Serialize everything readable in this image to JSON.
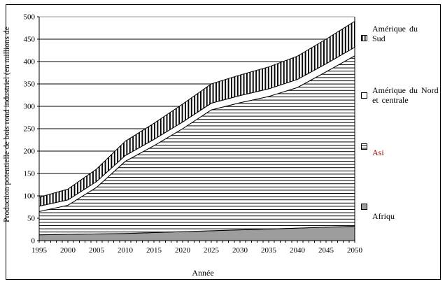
{
  "chart_data": {
    "type": "area",
    "stacked": true,
    "title": "",
    "xlabel": "Année",
    "ylabel": "Production potentielle de bois rond industriel (en millions de",
    "xlim": [
      1995,
      2050
    ],
    "ylim": [
      0,
      500
    ],
    "grid": "horizontal",
    "legend_position": "right",
    "x": [
      1995,
      2000,
      2005,
      2010,
      2015,
      2020,
      2025,
      2030,
      2035,
      2040,
      2045,
      2050
    ],
    "xticks": [
      1995,
      2000,
      2005,
      2010,
      2015,
      2020,
      2025,
      2030,
      2035,
      2040,
      2045,
      2050
    ],
    "minor_xtick_interval_years": 1,
    "yticks": [
      0,
      50,
      100,
      150,
      200,
      250,
      300,
      350,
      400,
      450,
      500
    ],
    "series": [
      {
        "key": "afrique",
        "name": "Afrique",
        "legend_label": "Afriqu",
        "swatch": "solid-gray",
        "fill_color": "#9d9d9d",
        "values": [
          13,
          14,
          15,
          16,
          18,
          20,
          22,
          24,
          26,
          28,
          30,
          32
        ]
      },
      {
        "key": "asie",
        "name": "Asie",
        "legend_label": "Asi",
        "swatch": "horizontal-stripes",
        "legend_label_color": "#990000",
        "values": [
          52,
          65,
          104,
          161,
          194,
          230,
          270,
          284,
          296,
          314,
          347,
          381
        ]
      },
      {
        "key": "amerique-du-nord-et-centrale",
        "name": "Amérique du Nord et centrale",
        "legend_label": "Amérique du Nord et centrale",
        "swatch": "white",
        "fill_color": "#ffffff",
        "values": [
          12,
          12,
          13,
          13,
          14,
          15,
          15,
          16,
          17,
          18,
          18,
          19
        ]
      },
      {
        "key": "amerique-du-sud",
        "name": "Amérique du Sud",
        "legend_label": "Amérique du Sud",
        "swatch": "vertical-stripes",
        "values": [
          20,
          24,
          28,
          32,
          36,
          40,
          43,
          46,
          49,
          52,
          55,
          58
        ]
      }
    ],
    "cumulative_totals": [
      97,
      115,
      160,
      222,
      262,
      305,
      350,
      370,
      388,
      412,
      450,
      490
    ],
    "colors": {
      "gridline": "#000000",
      "top_gridline": "#999999",
      "axis": "#000000",
      "asie_label": "#990000"
    }
  }
}
